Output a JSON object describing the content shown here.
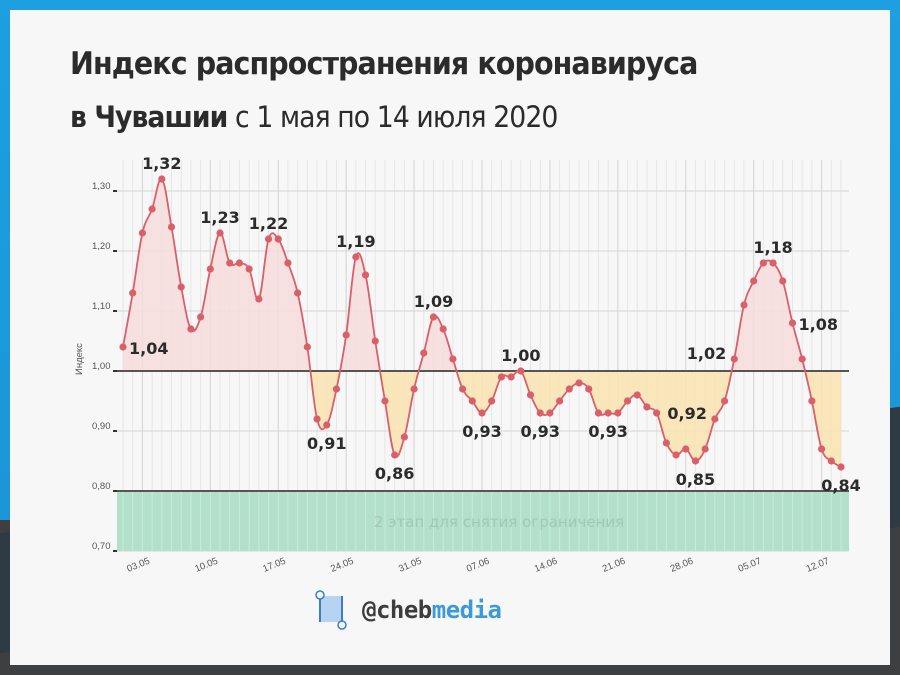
{
  "header": {
    "title": "Индекс распространения коронавируса",
    "subtitle_bold": "в Чувашии",
    "subtitle_rest": " с 1 мая по 14 июля 2020"
  },
  "footer": {
    "logo_handle": "@cheb",
    "logo_brand": "media"
  },
  "colors": {
    "line": "#d9606a",
    "point": "#d9606a",
    "fill_above": "#f7dcdc",
    "fill_below": "#f9e3b4",
    "zone_green": "#b3e0cb",
    "threshold_line": "#555555",
    "grid": "#dedede",
    "frame_blue": "#1e9fe0",
    "brand_blue": "#3c9ad8"
  },
  "chart_data": {
    "type": "line",
    "title": "Индекс распространения коронавируса в Чувашии с 1 мая по 14 июля 2020",
    "xlabel": "",
    "ylabel": "Индекс",
    "ylim": [
      0.7,
      1.33
    ],
    "yticks": [
      "0,70",
      "0,80",
      "0,90",
      "1,00",
      "1,10",
      "1,20",
      "1,30"
    ],
    "ytick_values": [
      0.7,
      0.8,
      0.9,
      1.0,
      1.1,
      1.2,
      1.3
    ],
    "xtick_labels": [
      "03.05",
      "10.05",
      "17.05",
      "24.05",
      "31.05",
      "07.06",
      "14.06",
      "21.06",
      "28.06",
      "05.07",
      "12.07"
    ],
    "xtick_indices": [
      2,
      9,
      16,
      23,
      30,
      37,
      44,
      51,
      58,
      65,
      72
    ],
    "grid": true,
    "x_start": "01.05",
    "x_end": "14.07",
    "series": [
      {
        "name": "Индекс",
        "values": [
          1.04,
          1.13,
          1.23,
          1.27,
          1.32,
          1.24,
          1.14,
          1.07,
          1.09,
          1.17,
          1.23,
          1.18,
          1.18,
          1.17,
          1.12,
          1.22,
          1.22,
          1.18,
          1.13,
          1.04,
          0.92,
          0.91,
          0.97,
          1.06,
          1.19,
          1.16,
          1.05,
          0.95,
          0.86,
          0.89,
          0.97,
          1.03,
          1.09,
          1.07,
          1.02,
          0.97,
          0.95,
          0.93,
          0.95,
          0.99,
          0.99,
          1.0,
          0.96,
          0.93,
          0.93,
          0.95,
          0.97,
          0.98,
          0.97,
          0.93,
          0.93,
          0.93,
          0.95,
          0.96,
          0.94,
          0.93,
          0.88,
          0.86,
          0.87,
          0.85,
          0.87,
          0.92,
          0.95,
          1.02,
          1.11,
          1.15,
          1.18,
          1.18,
          1.15,
          1.08,
          1.02,
          0.95,
          0.87,
          0.85,
          0.84
        ]
      }
    ],
    "reference_lines": [
      {
        "value": 1.0,
        "label": ""
      },
      {
        "value": 0.8,
        "label": ""
      }
    ],
    "zones": [
      {
        "from": 0.7,
        "to": 0.8,
        "label": "2 этап для снятия ограничения",
        "color": "#b3e0cb"
      }
    ],
    "annotations": [
      {
        "index": 0,
        "text": "1,04",
        "pos": "right"
      },
      {
        "index": 4,
        "text": "1,32",
        "pos": "top"
      },
      {
        "index": 10,
        "text": "1,23",
        "pos": "top"
      },
      {
        "index": 15,
        "text": "1,22",
        "pos": "top"
      },
      {
        "index": 21,
        "text": "0,91",
        "pos": "bottom"
      },
      {
        "index": 24,
        "text": "1,19",
        "pos": "top"
      },
      {
        "index": 28,
        "text": "0,86",
        "pos": "bottom"
      },
      {
        "index": 32,
        "text": "1,09",
        "pos": "top"
      },
      {
        "index": 37,
        "text": "0,93",
        "pos": "bottom"
      },
      {
        "index": 41,
        "text": "1,00",
        "pos": "top"
      },
      {
        "index": 43,
        "text": "0,93",
        "pos": "bottom"
      },
      {
        "index": 50,
        "text": "0,93",
        "pos": "bottom"
      },
      {
        "index": 59,
        "text": "0,85",
        "pos": "bottom"
      },
      {
        "index": 61,
        "text": "0,92",
        "pos": "left"
      },
      {
        "index": 63,
        "text": "1,02",
        "pos": "left"
      },
      {
        "index": 67,
        "text": "1,18",
        "pos": "top"
      },
      {
        "index": 69,
        "text": "1,08",
        "pos": "right"
      },
      {
        "index": 74,
        "text": "0,84",
        "pos": "bottom"
      }
    ]
  }
}
